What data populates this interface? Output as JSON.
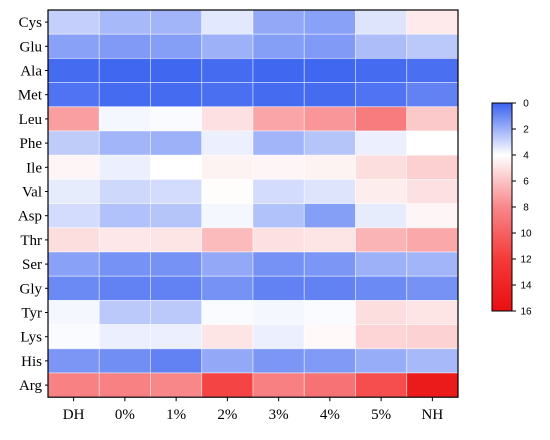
{
  "chart_data": {
    "type": "heatmap",
    "title": "",
    "xlabel": "",
    "ylabel": "",
    "rows": [
      "Cys",
      "Glu",
      "Ala",
      "Met",
      "Leu",
      "Phe",
      "Ile",
      "Val",
      "Asp",
      "Thr",
      "Ser",
      "Gly",
      "Tyr",
      "Lys",
      "His",
      "Arg"
    ],
    "columns": [
      "DH",
      "0%",
      "1%",
      "2%",
      "3%",
      "4%",
      "5%",
      "NH"
    ],
    "values": [
      [
        2.8,
        2.2,
        2.1,
        3.4,
        1.8,
        1.6,
        3.3,
        4.7
      ],
      [
        1.6,
        1.4,
        1.5,
        2.0,
        1.5,
        1.4,
        2.3,
        2.6
      ],
      [
        0.2,
        0.1,
        0.1,
        0.2,
        0.1,
        0.1,
        0.2,
        0.3
      ],
      [
        0.4,
        0.2,
        0.2,
        0.3,
        0.2,
        0.2,
        0.4,
        0.8
      ],
      [
        7.2,
        3.8,
        3.9,
        5.0,
        7.0,
        7.5,
        8.6,
        5.8
      ],
      [
        2.7,
        2.1,
        2.0,
        3.6,
        2.1,
        2.5,
        3.6,
        4.0
      ],
      [
        4.3,
        3.6,
        4.0,
        4.4,
        4.3,
        4.4,
        5.1,
        5.6
      ],
      [
        3.5,
        3.0,
        3.1,
        4.1,
        3.1,
        3.3,
        4.6,
        5.0
      ],
      [
        3.1,
        2.4,
        2.5,
        3.8,
        2.4,
        1.5,
        3.5,
        4.3
      ],
      [
        5.1,
        4.8,
        4.9,
        6.3,
        5.0,
        4.9,
        6.5,
        6.9
      ],
      [
        1.6,
        1.2,
        1.2,
        1.8,
        1.2,
        1.3,
        2.0,
        2.1
      ],
      [
        1.0,
        0.8,
        0.8,
        1.2,
        0.8,
        0.8,
        1.0,
        1.2
      ],
      [
        3.8,
        2.6,
        2.6,
        3.9,
        3.8,
        3.9,
        5.1,
        4.9
      ],
      [
        3.9,
        3.6,
        3.6,
        4.9,
        3.6,
        4.2,
        5.4,
        5.5
      ],
      [
        1.3,
        1.1,
        0.8,
        1.8,
        1.3,
        1.4,
        1.9,
        2.2
      ],
      [
        8.3,
        8.3,
        8.0,
        11.5,
        8.4,
        9.1,
        11.0,
        15.0
      ]
    ],
    "colorbar": {
      "min": 0,
      "max": 16,
      "ticks": [
        0,
        2,
        4,
        6,
        8,
        10,
        12,
        14,
        16
      ],
      "orientation": "reversed",
      "stops": [
        {
          "value": 0,
          "color": "#3b63f0"
        },
        {
          "value": 4,
          "color": "#ffffff"
        },
        {
          "value": 8,
          "color": "#f8878a"
        },
        {
          "value": 12,
          "color": "#f53a3a"
        },
        {
          "value": 16,
          "color": "#e80f10"
        }
      ]
    },
    "grid": true
  }
}
